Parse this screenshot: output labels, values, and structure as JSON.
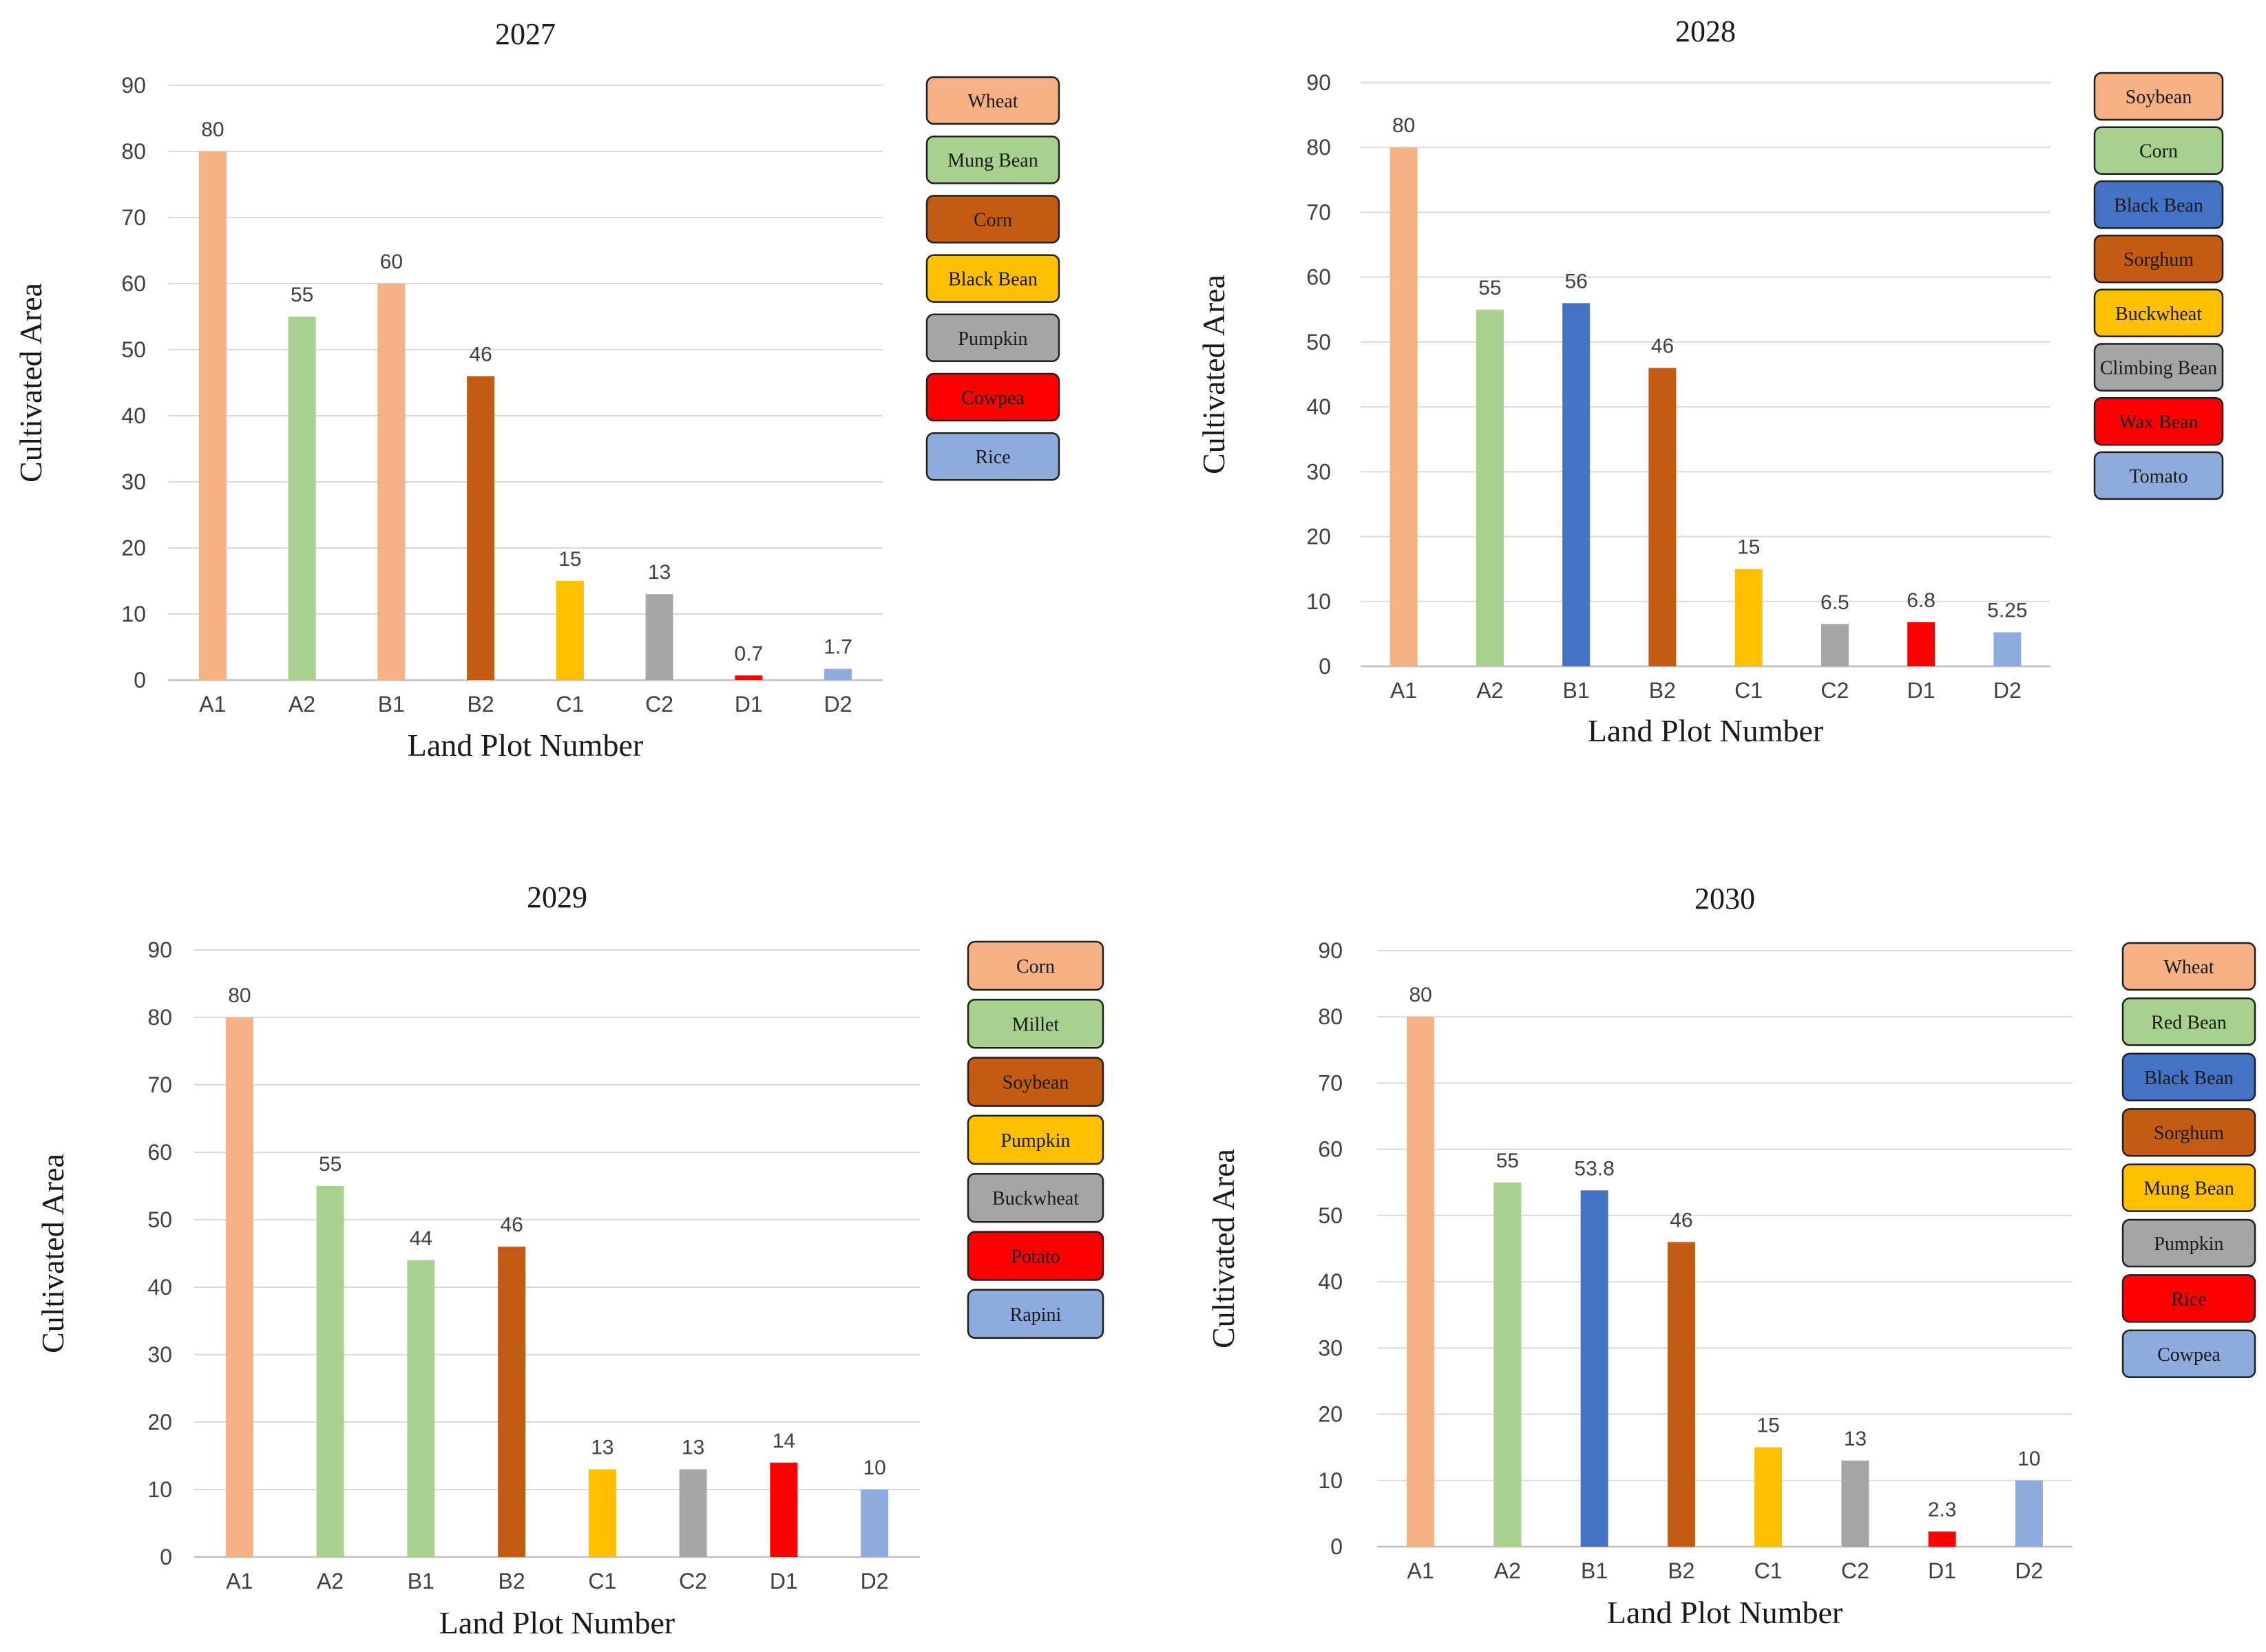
{
  "chart_data": [
    {
      "type": "bar",
      "title": "2027",
      "xlabel": "Land Plot Number",
      "ylabel": "Cultivated Area",
      "ylim": [
        0,
        90
      ],
      "yticks": [
        0,
        10,
        20,
        30,
        40,
        50,
        60,
        70,
        80,
        90
      ],
      "grid": true,
      "legend_position": "right",
      "categories": [
        "A1",
        "A2",
        "B1",
        "B2",
        "C1",
        "C2",
        "D1",
        "D2"
      ],
      "values": [
        80,
        55,
        60,
        46,
        15,
        13,
        0.7,
        1.7
      ],
      "data_labels": [
        "80",
        "55",
        "60",
        "46",
        "15",
        "13",
        "0.7",
        "1.7"
      ],
      "bar_colors": [
        "#F4B183",
        "#A9D18E",
        "#F4B183",
        "#C55A11",
        "#FFC000",
        "#A5A5A5",
        "#FF0000",
        "#8FAADC"
      ],
      "legend": [
        {
          "label": "Wheat",
          "color": "#F4B183"
        },
        {
          "label": "Mung Bean",
          "color": "#A9D18E"
        },
        {
          "label": "Corn",
          "color": "#C55A11"
        },
        {
          "label": "Black Bean",
          "color": "#FFC000"
        },
        {
          "label": "Pumpkin",
          "color": "#A5A5A5"
        },
        {
          "label": "Cowpea",
          "color": "#FF0000"
        },
        {
          "label": "Rice",
          "color": "#8FAADC"
        }
      ]
    },
    {
      "type": "bar",
      "title": "2028",
      "xlabel": "Land Plot Number",
      "ylabel": "Cultivated Area",
      "ylim": [
        0,
        90
      ],
      "yticks": [
        0,
        10,
        20,
        30,
        40,
        50,
        60,
        70,
        80,
        90
      ],
      "grid": true,
      "legend_position": "right",
      "categories": [
        "A1",
        "A2",
        "B1",
        "B2",
        "C1",
        "C2",
        "D1",
        "D2"
      ],
      "values": [
        80,
        55,
        56,
        46,
        15,
        6.5,
        6.8,
        5.25
      ],
      "data_labels": [
        "80",
        "55",
        "56",
        "46",
        "15",
        "6.5",
        "6.8",
        "5.25"
      ],
      "bar_colors": [
        "#F4B183",
        "#A9D18E",
        "#4472C4",
        "#C55A11",
        "#FFC000",
        "#A5A5A5",
        "#FF0000",
        "#8FAADC"
      ],
      "legend": [
        {
          "label": "Soybean",
          "color": "#F4B183"
        },
        {
          "label": "Corn",
          "color": "#A9D18E"
        },
        {
          "label": "Black Bean",
          "color": "#4472C4"
        },
        {
          "label": "Sorghum",
          "color": "#C55A11"
        },
        {
          "label": "Buckwheat",
          "color": "#FFC000"
        },
        {
          "label": "Climbing Bean",
          "color": "#A5A5A5"
        },
        {
          "label": "Wax Bean",
          "color": "#FF0000"
        },
        {
          "label": "Tomato",
          "color": "#8FAADC"
        }
      ]
    },
    {
      "type": "bar",
      "title": "2029",
      "xlabel": "Land Plot Number",
      "ylabel": "Cultivated Area",
      "ylim": [
        0,
        90
      ],
      "yticks": [
        0,
        10,
        20,
        30,
        40,
        50,
        60,
        70,
        80,
        90
      ],
      "grid": true,
      "legend_position": "right",
      "categories": [
        "A1",
        "A2",
        "B1",
        "B2",
        "C1",
        "C2",
        "D1",
        "D2"
      ],
      "values": [
        80,
        55,
        44,
        46,
        13,
        13,
        14,
        10
      ],
      "data_labels": [
        "80",
        "55",
        "44",
        "46",
        "13",
        "13",
        "14",
        "10"
      ],
      "bar_colors": [
        "#F4B183",
        "#A9D18E",
        "#A9D18E",
        "#C55A11",
        "#FFC000",
        "#A5A5A5",
        "#FF0000",
        "#8FAADC"
      ],
      "legend": [
        {
          "label": "Corn",
          "color": "#F4B183"
        },
        {
          "label": "Millet",
          "color": "#A9D18E"
        },
        {
          "label": "Soybean",
          "color": "#C55A11"
        },
        {
          "label": "Pumpkin",
          "color": "#FFC000"
        },
        {
          "label": "Buckwheat",
          "color": "#A5A5A5"
        },
        {
          "label": "Potato",
          "color": "#FF0000"
        },
        {
          "label": "Rapini",
          "color": "#8FAADC"
        }
      ]
    },
    {
      "type": "bar",
      "title": "2030",
      "xlabel": "Land Plot Number",
      "ylabel": "Cultivated Area",
      "ylim": [
        0,
        90
      ],
      "yticks": [
        0,
        10,
        20,
        30,
        40,
        50,
        60,
        70,
        80,
        90
      ],
      "grid": true,
      "legend_position": "right",
      "categories": [
        "A1",
        "A2",
        "B1",
        "B2",
        "C1",
        "C2",
        "D1",
        "D2"
      ],
      "values": [
        80,
        55,
        53.8,
        46,
        15,
        13,
        2.3,
        10
      ],
      "data_labels": [
        "80",
        "55",
        "53.8",
        "46",
        "15",
        "13",
        "2.3",
        "10"
      ],
      "bar_colors": [
        "#F4B183",
        "#A9D18E",
        "#4472C4",
        "#C55A11",
        "#FFC000",
        "#A5A5A5",
        "#FF0000",
        "#8FAADC"
      ],
      "legend": [
        {
          "label": "Wheat",
          "color": "#F4B183"
        },
        {
          "label": "Red Bean",
          "color": "#A9D18E"
        },
        {
          "label": "Black Bean",
          "color": "#4472C4"
        },
        {
          "label": "Sorghum",
          "color": "#C55A11"
        },
        {
          "label": "Mung Bean",
          "color": "#FFC000"
        },
        {
          "label": "Pumpkin",
          "color": "#A5A5A5"
        },
        {
          "label": "Rice",
          "color": "#FF0000"
        },
        {
          "label": "Cowpea",
          "color": "#8FAADC"
        }
      ]
    }
  ]
}
